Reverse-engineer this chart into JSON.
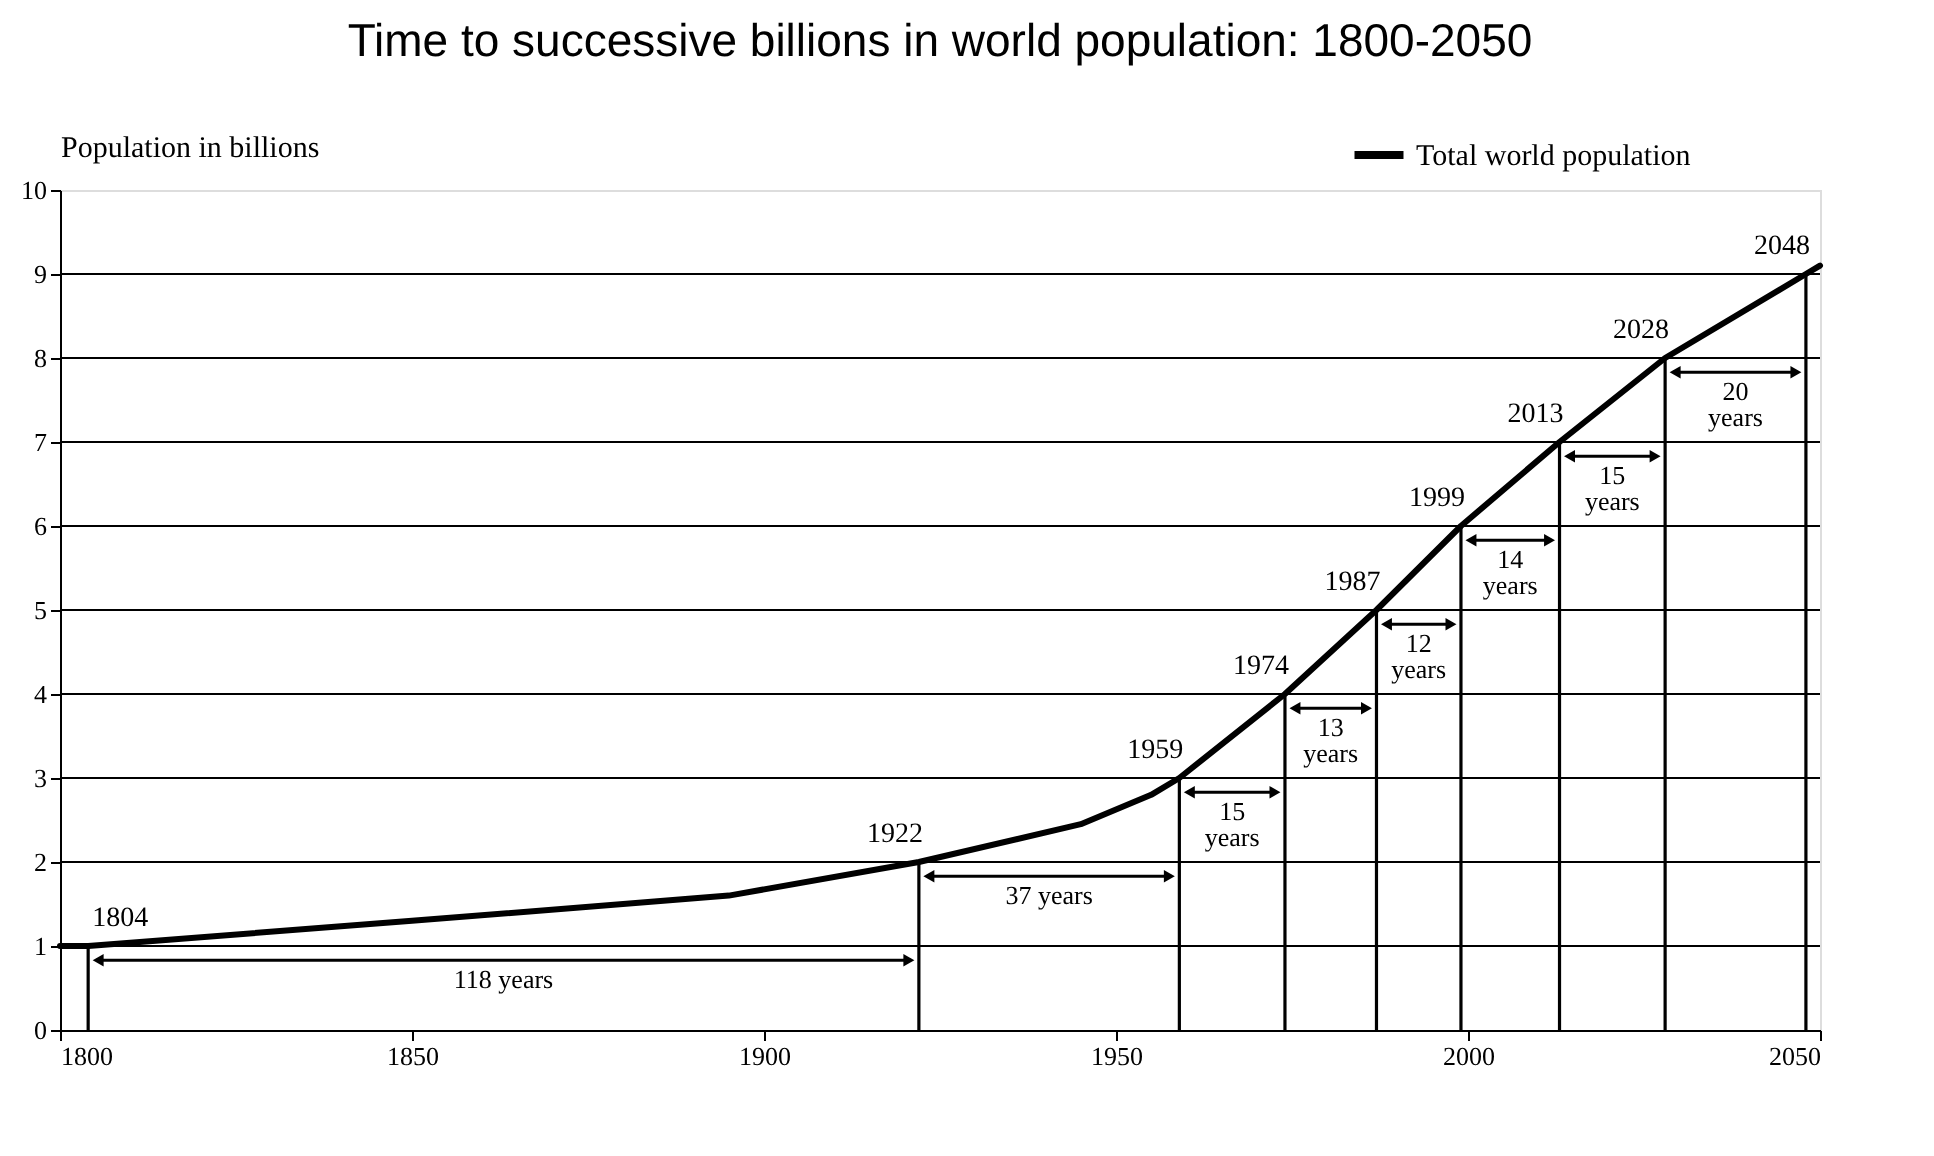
{
  "chart_data": {
    "type": "line",
    "title": "Time to successive billions in world population: 1800-2050",
    "ylabel": "Population in billions",
    "xlim": [
      1800,
      2050
    ],
    "xticks": [
      1800,
      1850,
      1900,
      1950,
      2000,
      2050
    ],
    "ylim": [
      0,
      10
    ],
    "yticks": [
      0,
      1,
      2,
      3,
      4,
      5,
      6,
      7,
      8,
      9,
      10
    ],
    "grid": "y",
    "legend": "top right",
    "series": [
      {
        "name": "Total world population",
        "color": "#000000",
        "x": [
          1800,
          1804,
          1850,
          1895,
          1922,
          1945,
          1955,
          1959,
          1974,
          1987,
          1999,
          2013,
          2028,
          2048,
          2050
        ],
        "values": [
          1.0,
          1.0,
          1.3,
          1.6,
          2.0,
          2.45,
          2.8,
          3.0,
          4.0,
          5.0,
          6.0,
          7.0,
          8.0,
          9.0,
          9.1
        ]
      },
      {
        "type": "bar",
        "color": "#000000",
        "x": [
          1804,
          1922,
          1959,
          1974,
          1987,
          1999,
          2013,
          2028,
          2048
        ],
        "values": [
          1,
          2,
          3,
          4,
          5,
          6,
          7,
          8,
          9
        ]
      }
    ],
    "annotations": [
      {
        "text": "1804",
        "x": 1804,
        "y": 1
      },
      {
        "text": "1922",
        "x": 1922,
        "y": 2
      },
      {
        "text": "1959",
        "x": 1959,
        "y": 3
      },
      {
        "text": "1974",
        "x": 1974,
        "y": 4
      },
      {
        "text": "1987",
        "x": 1987,
        "y": 5
      },
      {
        "text": "1999",
        "x": 1999,
        "y": 6
      },
      {
        "text": "2013",
        "x": 2013,
        "y": 7
      },
      {
        "text": "2028",
        "x": 2028,
        "y": 8
      },
      {
        "text": "2048",
        "x": 2048,
        "y": 9
      },
      "118 years",
      "37 years",
      "15\nyears",
      "13\nyears",
      "12\nyears",
      "14\nyears",
      "15\nyears",
      "20\nyears"
    ]
  }
}
